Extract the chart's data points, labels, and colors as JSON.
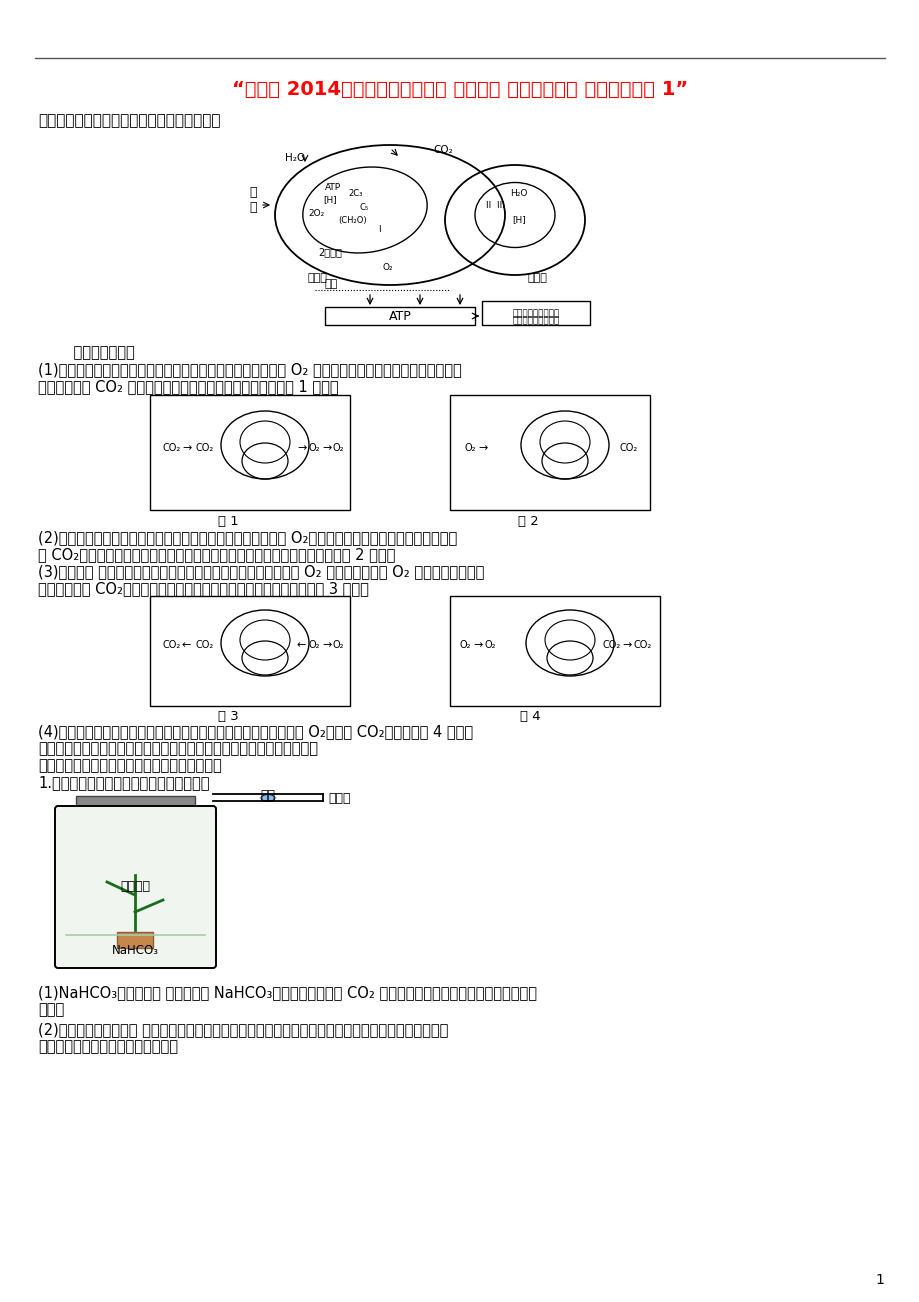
{
  "title": "“【备考 2014】高考生物一轮复习 疑难聚焦 专讲专题学案 新人教版必修 1”",
  "section1": "一、光合作用、细胞呼吸关系图解及动态分析",
  "dynamic_analysis": "    动态分析如下：",
  "para1": "(1)强光光照：光合作用速率大于细胞呼吸速率。叶綠体产生的 O₂ 的去向：供给线粒体＋释放到叶片外。",
  "para1b": "叶綠体需要的 CO₂ 的来源：线粒体产生＋外界吸收。过程如图 1 所示。",
  "fig1_label": "图 1",
  "fig2_label": "图 2",
  "para2": "(2)中性光照：光合作用速率等于细胞呼吸速率。叶綠体产生的 O₂供给线粒体进行细胞呼吸。线粒体产生",
  "para2b": "的 CO₂供给叶綠体进行光合作用，叶片与外界环境不进行气体交换。过程如图 2 所示。",
  "para3": "(3)弱光光照 光合作用速率小于细胞呼吸速率。叶綠体产生的全部 O₂ 和从外界吸收的 O₂ 供给线粒体利用。",
  "para3b": "线粒体产生的 CO₂除供给叶綠体利用外，其余释放到叶片外。过程如图 3 所示。",
  "fig3_label": "图 3",
  "fig4_label": "图 4",
  "para4": "(4)黑暗情况：不进行光合作用，只进行细胞呼吸，叶片从外界吸收 O₂，释放 CO₂。过程如图 4 所示。",
  "section2": "二、光合作用、细胞呼吸坐标曲线解读（参见前面知识，此处不再展开）",
  "section3": "三、光合作用、细胞呼吸的测定方法及实验装置",
  "measure1": "1.表观（净）光合速率的测定方法（如图）",
  "label_shuidi": "水滴",
  "label_maoxiguan": "毛细管",
  "label_ludse": "綠色植物",
  "label_nahco3": "NaHCO₃",
  "para5": "(1)NaHCO₃溶液作用： 玻璃瓶中的 NaHCO₃溶液保证了容器内 CO₂ 浓度的恒定，满足了綠色植物光合作用的",
  "para5b": "需求。",
  "para6": "(2)植物光合速率指标： 植物光合作用释放氧气，使容器内气体压强增大，毛细管内的水滴右移。单位时",
  "para6b": "间内水滴右移的体积即为光合速率。",
  "page_num": "1",
  "bg_color": "#ffffff",
  "text_color": "#000000",
  "title_color": "#ff0000",
  "line_color": "#555555"
}
